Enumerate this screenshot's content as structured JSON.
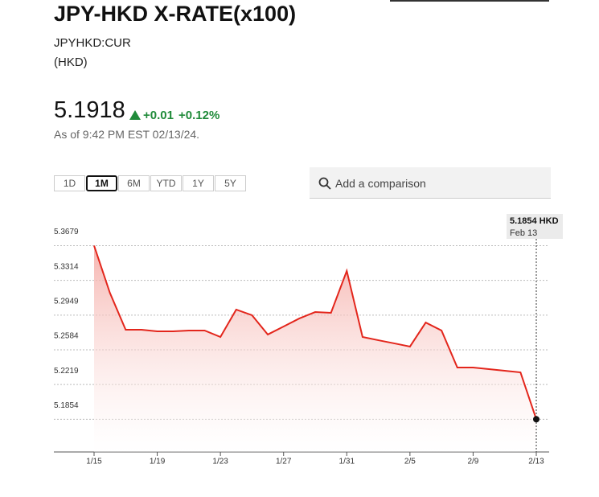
{
  "header": {
    "title": "JPY-HKD X-RATE(x100)",
    "symbol": "JPYHKD:CUR",
    "currency": "(HKD)"
  },
  "quote": {
    "price": "5.1918",
    "change": "+0.01",
    "change_pct": "+0.12%",
    "as_of": "As of 9:42 PM EST 02/13/24."
  },
  "ranges": {
    "options": [
      "1D",
      "1M",
      "6M",
      "YTD",
      "1Y",
      "5Y"
    ],
    "selected_index": 1
  },
  "search": {
    "placeholder": "Add a comparison"
  },
  "tooltip": {
    "value": "5.1854 HKD",
    "date": "Feb 13"
  },
  "chart_data": {
    "type": "line",
    "categories": [
      "1/15",
      null,
      null,
      null,
      "1/19",
      null,
      null,
      null,
      "1/23",
      null,
      null,
      null,
      "1/27",
      null,
      null,
      null,
      "1/31",
      null,
      null,
      null,
      "2/5",
      null,
      null,
      null,
      "2/9",
      null,
      null,
      null,
      "2/13"
    ],
    "values": [
      5.3679,
      5.3184,
      5.2795,
      5.2795,
      5.2778,
      5.2778,
      5.2787,
      5.2787,
      5.2719,
      5.3007,
      5.2948,
      5.2745,
      5.2829,
      5.2914,
      5.2981,
      5.2973,
      5.3413,
      5.2719,
      5.2685,
      5.2652,
      5.2618,
      5.2871,
      5.2787,
      5.2398,
      5.2398,
      5.2381,
      5.2364,
      5.2347,
      5.1854
    ],
    "color": "#e3261c",
    "ylim": [
      5.151,
      5.381
    ],
    "yticks": [
      5.1854,
      5.2219,
      5.2584,
      5.2949,
      5.3314,
      5.3679
    ],
    "grid": true
  }
}
